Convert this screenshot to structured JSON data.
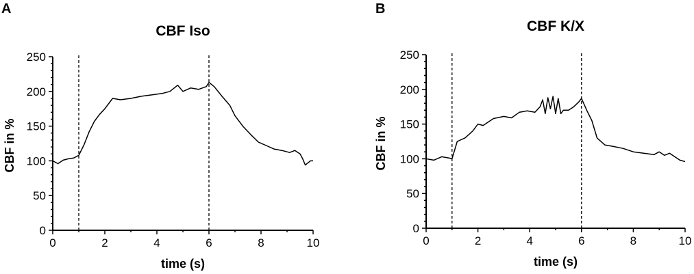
{
  "chart_data": [
    {
      "type": "line",
      "panel": "A",
      "title": "CBF Iso",
      "xlabel": "time (s)",
      "ylabel": "CBF in %",
      "xlim": [
        0,
        10
      ],
      "ylim": [
        0,
        250
      ],
      "xticks": [
        0,
        2,
        4,
        6,
        8,
        10
      ],
      "yticks": [
        0,
        50,
        100,
        150,
        200,
        250
      ],
      "grid": false,
      "markers": [
        1,
        6
      ],
      "series": [
        {
          "x": [
            0,
            0.2,
            0.4,
            0.6,
            0.8,
            1.0,
            1.2,
            1.4,
            1.6,
            1.8,
            2.0,
            2.2,
            2.3,
            2.6,
            3.0,
            3.4,
            3.8,
            4.2,
            4.5,
            4.8,
            5.0,
            5.3,
            5.6,
            5.9,
            6.0,
            6.2,
            6.5,
            6.8,
            7.0,
            7.3,
            7.6,
            7.9,
            8.2,
            8.5,
            8.8,
            9.1,
            9.3,
            9.5,
            9.6,
            9.7,
            9.8,
            9.9,
            10.0
          ],
          "y": [
            100,
            96,
            101,
            103,
            104,
            108,
            123,
            142,
            157,
            167,
            175,
            185,
            190,
            188,
            190,
            193,
            195,
            197,
            200,
            209,
            200,
            205,
            203,
            207,
            213,
            207,
            193,
            180,
            165,
            150,
            138,
            127,
            122,
            117,
            115,
            112,
            115,
            110,
            103,
            94,
            97,
            100,
            100
          ]
        }
      ]
    },
    {
      "type": "line",
      "panel": "B",
      "title": "CBF K/X",
      "xlabel": "time (s)",
      "ylabel": "CBF in %",
      "xlim": [
        0,
        10
      ],
      "ylim": [
        0,
        250
      ],
      "xticks": [
        0,
        2,
        4,
        6,
        8,
        10
      ],
      "yticks": [
        0,
        50,
        100,
        150,
        200,
        250
      ],
      "grid": false,
      "markers": [
        1,
        6
      ],
      "series": [
        {
          "x": [
            0,
            0.3,
            0.6,
            0.9,
            1.0,
            1.2,
            1.5,
            1.8,
            2.0,
            2.2,
            2.6,
            3.0,
            3.3,
            3.6,
            3.9,
            4.2,
            4.4,
            4.5,
            4.6,
            4.7,
            4.8,
            4.9,
            5.0,
            5.1,
            5.2,
            5.3,
            5.5,
            5.7,
            5.9,
            6.0,
            6.2,
            6.4,
            6.6,
            6.9,
            7.2,
            7.6,
            8.0,
            8.4,
            8.8,
            9.0,
            9.2,
            9.4,
            9.6,
            9.8,
            10.0
          ],
          "y": [
            100,
            98,
            103,
            101,
            100,
            125,
            130,
            140,
            150,
            148,
            158,
            161,
            159,
            167,
            169,
            167,
            175,
            185,
            165,
            188,
            172,
            190,
            165,
            187,
            165,
            170,
            170,
            175,
            182,
            187,
            170,
            155,
            130,
            120,
            118,
            115,
            110,
            108,
            106,
            110,
            105,
            108,
            103,
            98,
            96
          ]
        }
      ]
    }
  ]
}
